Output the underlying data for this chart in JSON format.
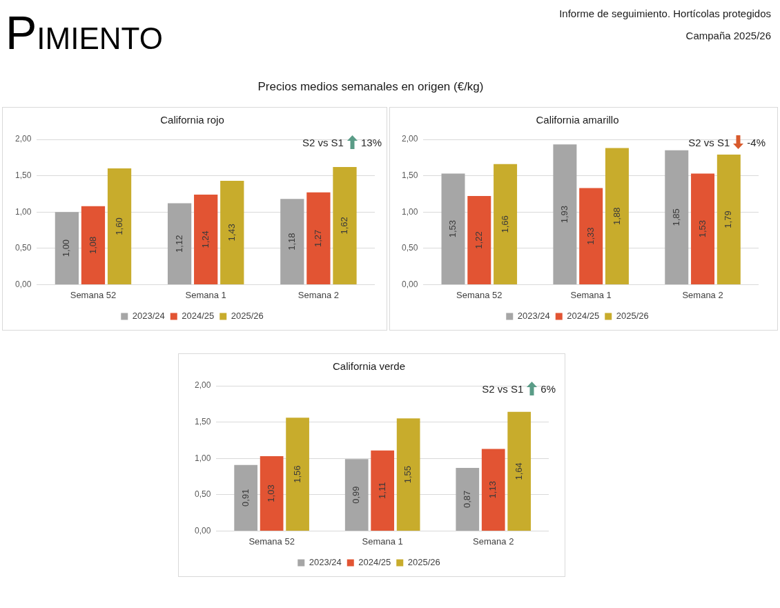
{
  "chart_data": [
    {
      "type": "bar",
      "title": "California rojo",
      "categories": [
        "Semana 52",
        "Semana 1",
        "Semana 2"
      ],
      "series": [
        {
          "name": "2023/24",
          "color": "#a6a6a6",
          "values": [
            1.0,
            1.12,
            1.18
          ],
          "value_labels": [
            "1,00",
            "1,12",
            "1,18"
          ]
        },
        {
          "name": "2024/25",
          "color": "#e25433",
          "values": [
            1.08,
            1.24,
            1.27
          ],
          "value_labels": [
            "1,08",
            "1,24",
            "1,27"
          ]
        },
        {
          "name": "2025/26",
          "color": "#c8ac2c",
          "values": [
            1.6,
            1.43,
            1.62
          ],
          "value_labels": [
            "1,60",
            "1,43",
            "1,62"
          ]
        }
      ],
      "ylim": [
        0,
        2
      ],
      "yticks": [
        {
          "value": 0,
          "label": "0,00"
        },
        {
          "value": 0.5,
          "label": "0,50"
        },
        {
          "value": 1,
          "label": "1,00"
        },
        {
          "value": 1.5,
          "label": "1,50"
        },
        {
          "value": 2,
          "label": "2,00"
        }
      ],
      "grid": "y",
      "legend": "bottom",
      "annotations": [
        "PIMIENTO",
        "Informe de seguimiento. Hortícolas protegidos",
        "Campaña 2025/26",
        "Precios medios semanales en origen (€/kg)",
        "S2 vs S1",
        "13%"
      ]
    },
    {
      "type": "bar",
      "title": "California amarillo",
      "categories": [
        "Semana 52",
        "Semana 1",
        "Semana 2"
      ],
      "series": [
        {
          "name": "2023/24",
          "color": "#a6a6a6",
          "values": [
            1.53,
            1.93,
            1.85
          ],
          "value_labels": [
            "1,53",
            "1,93",
            "1,85"
          ]
        },
        {
          "name": "2024/25",
          "color": "#e25433",
          "values": [
            1.22,
            1.33,
            1.53
          ],
          "value_labels": [
            "1,22",
            "1,33",
            "1,53"
          ]
        },
        {
          "name": "2025/26",
          "color": "#c8ac2c",
          "values": [
            1.66,
            1.88,
            1.79
          ],
          "value_labels": [
            "1,66",
            "1,88",
            "1,79"
          ]
        }
      ],
      "ylim": [
        0,
        2
      ],
      "yticks": [
        {
          "value": 0,
          "label": "0,00"
        },
        {
          "value": 0.5,
          "label": "0,50"
        },
        {
          "value": 1,
          "label": "1,00"
        },
        {
          "value": 1.5,
          "label": "1,50"
        },
        {
          "value": 2,
          "label": "2,00"
        }
      ],
      "grid": "y",
      "legend": "bottom",
      "annotations": [
        "S2 vs S1",
        "-4%"
      ]
    },
    {
      "type": "bar",
      "title": "California verde",
      "categories": [
        "Semana 52",
        "Semana 1",
        "Semana 2"
      ],
      "series": [
        {
          "name": "2023/24",
          "color": "#a6a6a6",
          "values": [
            0.91,
            0.99,
            0.87
          ],
          "value_labels": [
            "0,91",
            "0,99",
            "0,87"
          ]
        },
        {
          "name": "2024/25",
          "color": "#e25433",
          "values": [
            1.03,
            1.11,
            1.13
          ],
          "value_labels": [
            "1,03",
            "1,11",
            "1,13"
          ]
        },
        {
          "name": "2025/26",
          "color": "#c8ac2c",
          "values": [
            1.56,
            1.55,
            1.64
          ],
          "value_labels": [
            "1,56",
            "1,55",
            "1,64"
          ]
        }
      ],
      "ylim": [
        0,
        2
      ],
      "yticks": [
        {
          "value": 0,
          "label": "0,00"
        },
        {
          "value": 0.5,
          "label": "0,50"
        },
        {
          "value": 1,
          "label": "1,00"
        },
        {
          "value": 1.5,
          "label": "1,50"
        },
        {
          "value": 2,
          "label": "2,00"
        }
      ],
      "grid": "y",
      "legend": "bottom",
      "annotations": [
        "S2 vs S1",
        "6%"
      ]
    }
  ]
}
